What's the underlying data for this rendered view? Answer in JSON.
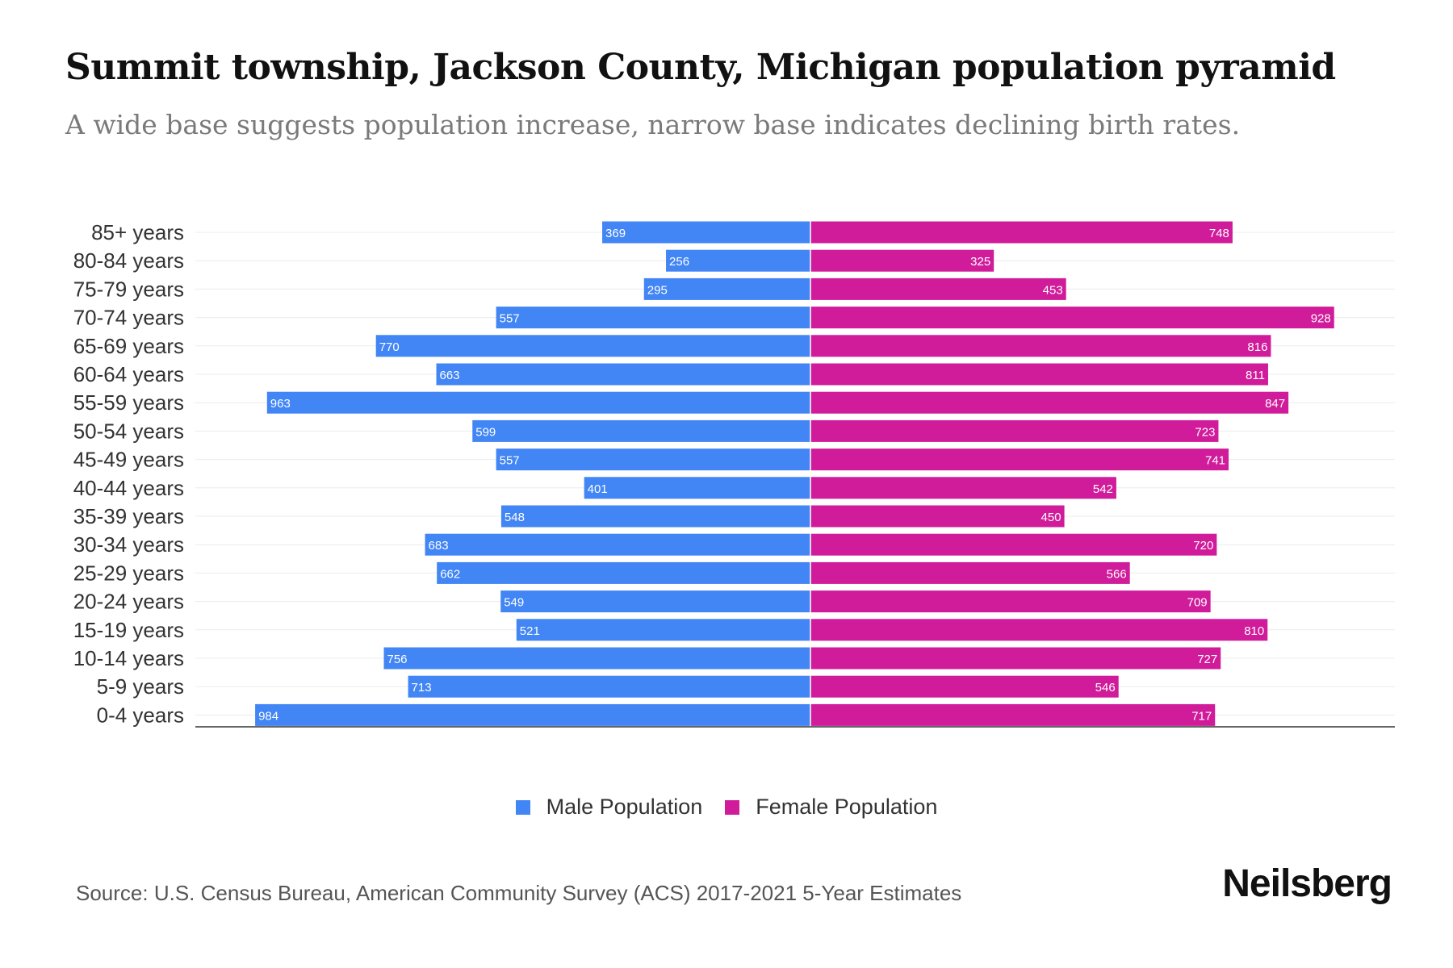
{
  "title": "Summit township, Jackson County, Michigan population pyramid",
  "subtitle": "A wide base suggests population increase, narrow base indicates declining birth rates.",
  "source": "Source: U.S. Census Bureau, American Community Survey (ACS) 2017-2021 5-Year Estimates",
  "brand": "Neilsberg",
  "colors": {
    "male": "#4285f4",
    "female": "#d01c9a"
  },
  "chart_data": {
    "type": "bar",
    "orientation": "horizontal",
    "categories": [
      "85+ years",
      "80-84 years",
      "75-79 years",
      "70-74 years",
      "65-69 years",
      "60-64 years",
      "55-59 years",
      "50-54 years",
      "45-49 years",
      "40-44 years",
      "35-39 years",
      "30-34 years",
      "25-29 years",
      "20-24 years",
      "15-19 years",
      "10-14 years",
      "5-9 years",
      "0-4 years"
    ],
    "series": [
      {
        "name": "Male Population",
        "values": [
          369,
          256,
          295,
          557,
          770,
          663,
          963,
          599,
          557,
          401,
          548,
          683,
          662,
          549,
          521,
          756,
          713,
          984
        ]
      },
      {
        "name": "Female Population",
        "values": [
          748,
          325,
          453,
          928,
          816,
          811,
          847,
          723,
          741,
          542,
          450,
          720,
          566,
          709,
          810,
          727,
          546,
          717
        ]
      }
    ],
    "xlim": [
      -1090,
      1040
    ],
    "legend": "bottom-center",
    "grid": true
  }
}
